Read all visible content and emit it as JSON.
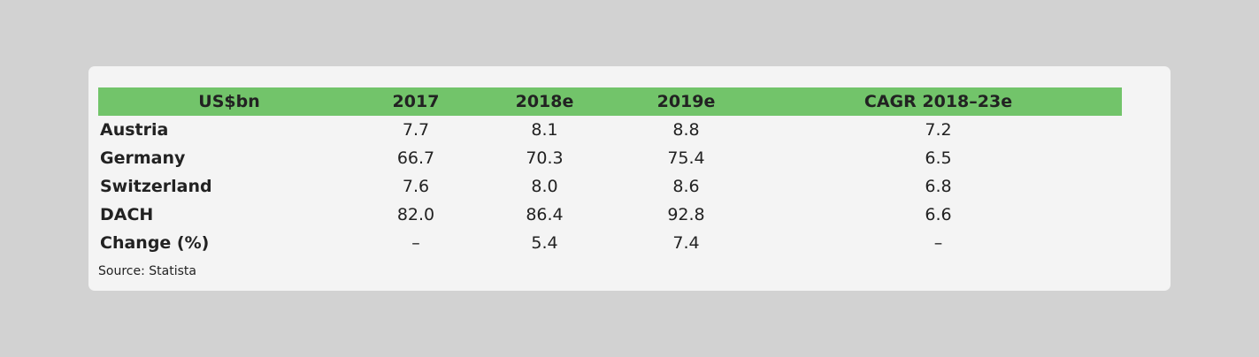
{
  "table": {
    "header": [
      "US$bn",
      "2017",
      "2018e",
      "2019e",
      "CAGR 2018–23e"
    ],
    "rows": [
      {
        "label": "Austria",
        "values": [
          "7.7",
          "8.1",
          "8.8",
          "7.2"
        ]
      },
      {
        "label": "Germany",
        "values": [
          "66.7",
          "70.3",
          "75.4",
          "6.5"
        ]
      },
      {
        "label": "Switzerland",
        "values": [
          "7.6",
          "8.0",
          "8.6",
          "6.8"
        ]
      },
      {
        "label": "DACH",
        "values": [
          "82.0",
          "86.4",
          "92.8",
          "6.6"
        ]
      },
      {
        "label": "Change (%)",
        "values": [
          "–",
          "5.4",
          "7.4",
          "–"
        ]
      }
    ]
  },
  "source": "Source: Statista",
  "colors": {
    "page_background": "#d2d2d2",
    "card_background": "#f4f4f4",
    "header_background": "#72c46a",
    "text": "#222222"
  }
}
